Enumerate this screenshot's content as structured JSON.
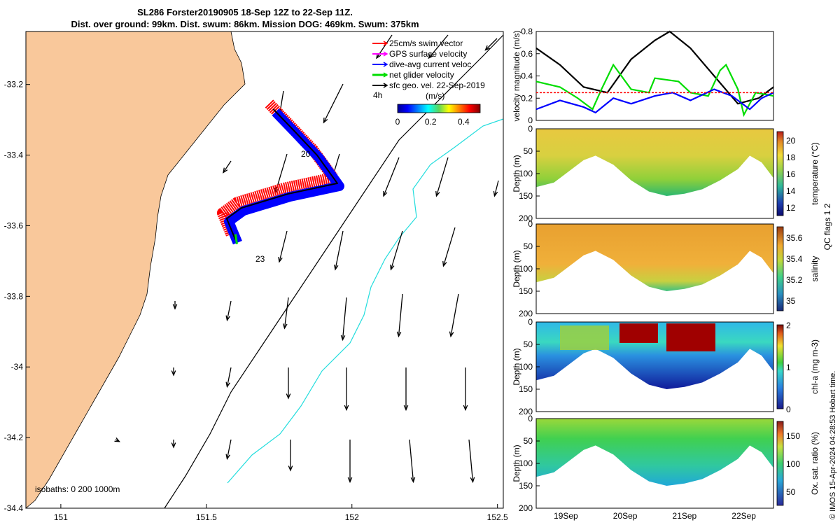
{
  "title": {
    "line1": "SL286 Forster20190905 18-Sep 12Z to 22-Sep 11Z.",
    "line2": "Dist. over ground: 99km. Dist. swum: 86km. Mission DOG: 469km. Swum: 375km"
  },
  "colors": {
    "land": "#f9c89b",
    "swim_vector": "#ff0000",
    "gps_velocity": "#ff00ff",
    "current": "#0000ff",
    "net_velocity": "#00dd00",
    "geostrophic": "#000000",
    "isobath_200": "#000000",
    "isobath_1000": "#22dddd"
  },
  "chart_data": [
    {
      "type": "map",
      "x_ticks": [
        "151",
        "151.5",
        "152",
        "152.5"
      ],
      "y_ticks": [
        "-33.2",
        "-33.4",
        "-33.6",
        "-33.8",
        "-34",
        "-34.2",
        "-34.4"
      ],
      "xlim": [
        150.88,
        152.52
      ],
      "ylim": [
        -34.4,
        -33.05
      ],
      "legend": {
        "placement": "top-right",
        "entries": [
          "25cm/s swim vector",
          "GPS surface velocity",
          "dive-avg current veloc.",
          "net glider velocity",
          "sfc geo. vel. 22-Sep-2019"
        ]
      },
      "colorbar": {
        "label": "(m/s)",
        "ticks": [
          "0",
          "0.2",
          "0.4"
        ],
        "range": [
          0,
          0.5
        ]
      },
      "extra_labels": {
        "interval": "4h",
        "day_20": "20",
        "day_23": "23"
      },
      "isobath_note": "isobaths: 0   200  1000m",
      "track": {
        "lon": [
          151.73,
          151.8,
          151.88,
          151.95,
          151.78,
          151.62,
          151.57,
          151.6
        ],
        "lat": [
          -33.27,
          -33.33,
          -33.4,
          -33.48,
          -33.51,
          -33.55,
          -33.58,
          -33.64
        ]
      }
    },
    {
      "type": "line",
      "ylabel": "velocity magnitude (m/s)",
      "ylim": [
        0,
        0.8
      ],
      "y_ticks": [
        "0",
        "0.2",
        "0.4",
        "0.6",
        "0.8"
      ],
      "series": [
        {
          "color": "#000000",
          "x": [
            18.5,
            18.9,
            19.3,
            19.7,
            20.1,
            20.5,
            20.75,
            21.1,
            21.5,
            21.9,
            22.25,
            22.5
          ],
          "y": [
            0.65,
            0.5,
            0.3,
            0.25,
            0.55,
            0.72,
            0.8,
            0.65,
            0.4,
            0.15,
            0.2,
            0.3
          ]
        },
        {
          "color": "#00dd00",
          "x": [
            18.5,
            18.9,
            19.2,
            19.45,
            19.6,
            19.8,
            20.1,
            20.4,
            20.5,
            20.9,
            21.1,
            21.4,
            21.6,
            21.7,
            21.9,
            22.0,
            22.2,
            22.5
          ],
          "y": [
            0.35,
            0.3,
            0.2,
            0.1,
            0.28,
            0.5,
            0.28,
            0.25,
            0.38,
            0.35,
            0.25,
            0.22,
            0.45,
            0.5,
            0.28,
            0.05,
            0.25,
            0.22
          ]
        },
        {
          "color": "#0000ff",
          "x": [
            18.5,
            18.9,
            19.3,
            19.5,
            19.8,
            20.1,
            20.5,
            20.8,
            21.1,
            21.5,
            21.8,
            22.1,
            22.3,
            22.5
          ],
          "y": [
            0.1,
            0.18,
            0.12,
            0.07,
            0.2,
            0.15,
            0.22,
            0.25,
            0.18,
            0.28,
            0.22,
            0.1,
            0.2,
            0.25
          ]
        },
        {
          "color": "#ff0000",
          "x": [
            18.5,
            22.5
          ],
          "y": [
            0.25,
            0.25
          ]
        }
      ]
    },
    {
      "type": "heatmap",
      "variable": "temperature",
      "ylabel": "Depth (m)",
      "colorbar_label": "temperature (°C)",
      "colorbar_ticks": [
        "12",
        "14",
        "16",
        "18",
        "20"
      ],
      "clim": [
        11,
        21
      ],
      "ylim": [
        0,
        200
      ],
      "y_ticks": [
        "0",
        "50",
        "100",
        "150",
        "200"
      ]
    },
    {
      "type": "heatmap",
      "variable": "salinity",
      "ylabel": "Depth (m)",
      "colorbar_label": "salinity",
      "colorbar_ticks": [
        "35",
        "35.2",
        "35.4",
        "35.6"
      ],
      "clim": [
        34.9,
        35.7
      ],
      "ylim": [
        0,
        200
      ],
      "y_ticks": [
        "0",
        "50",
        "100",
        "150",
        "200"
      ],
      "side_label": "QC flags 1  2"
    },
    {
      "type": "heatmap",
      "variable": "chlorophyll",
      "ylabel": "Depth (m)",
      "colorbar_label": "chl-a (mg m-3)",
      "colorbar_ticks": [
        "0",
        "1",
        "2"
      ],
      "clim": [
        0,
        2
      ],
      "ylim": [
        0,
        200
      ],
      "y_ticks": [
        "0",
        "50",
        "100",
        "150",
        "200"
      ]
    },
    {
      "type": "heatmap",
      "variable": "oxygen",
      "ylabel": "Depth (m)",
      "colorbar_label": "Ox. sat. ratio (%)",
      "colorbar_ticks": [
        "50",
        "100",
        "150"
      ],
      "clim": [
        25,
        175
      ],
      "ylim": [
        0,
        200
      ],
      "y_ticks": [
        "0",
        "50",
        "100",
        "150",
        "200"
      ],
      "x_ticks": [
        "19Sep",
        "20Sep",
        "21Sep",
        "22Sep"
      ],
      "xlim": [
        18.5,
        22.5
      ]
    }
  ],
  "profile_depth_limit": {
    "x": [
      18.5,
      18.8,
      19.0,
      19.3,
      19.5,
      19.8,
      20.1,
      20.4,
      20.7,
      21.0,
      21.3,
      21.6,
      21.9,
      22.1,
      22.3,
      22.5
    ],
    "depth": [
      130,
      120,
      100,
      70,
      60,
      80,
      115,
      140,
      150,
      145,
      135,
      115,
      90,
      60,
      75,
      110
    ]
  },
  "credit": "© IMOS 15-Apr-2024 04:28:53 Hobart time."
}
